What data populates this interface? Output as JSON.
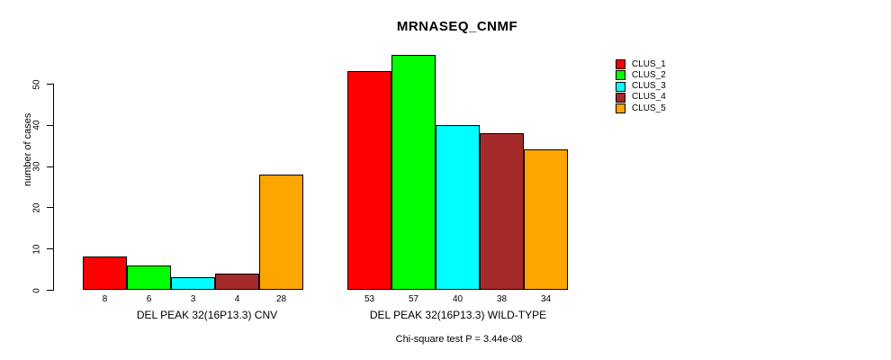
{
  "chart_data": {
    "type": "bar",
    "title": "MRNASEQ_CNMF",
    "ylabel": "number of cases",
    "xlabel": "",
    "footnote": "Chi-square test P = 3.44e-08",
    "categories": [
      "DEL PEAK 32(16P13.3) CNV",
      "DEL PEAK 32(16P13.3) WILD-TYPE"
    ],
    "series": [
      {
        "name": "CLUS_1",
        "color": "#FF0000",
        "values": [
          8,
          53
        ]
      },
      {
        "name": "CLUS_2",
        "color": "#00FF00",
        "values": [
          6,
          57
        ]
      },
      {
        "name": "CLUS_3",
        "color": "#00FFFF",
        "values": [
          3,
          40
        ]
      },
      {
        "name": "CLUS_4",
        "color": "#A52A2A",
        "values": [
          4,
          38
        ]
      },
      {
        "name": "CLUS_5",
        "color": "#FFA500",
        "values": [
          28,
          34
        ]
      }
    ],
    "bar_value_labels": [
      [
        "8",
        "6",
        "3",
        "4",
        "28"
      ],
      [
        "53",
        "57",
        "40",
        "38",
        "34"
      ]
    ],
    "yticks": [
      0,
      10,
      20,
      30,
      40,
      50
    ],
    "ylim": [
      0,
      57
    ],
    "grid": false,
    "legend_position": "right",
    "axis_color": "#000000",
    "background_color": "#FFFFFF"
  }
}
